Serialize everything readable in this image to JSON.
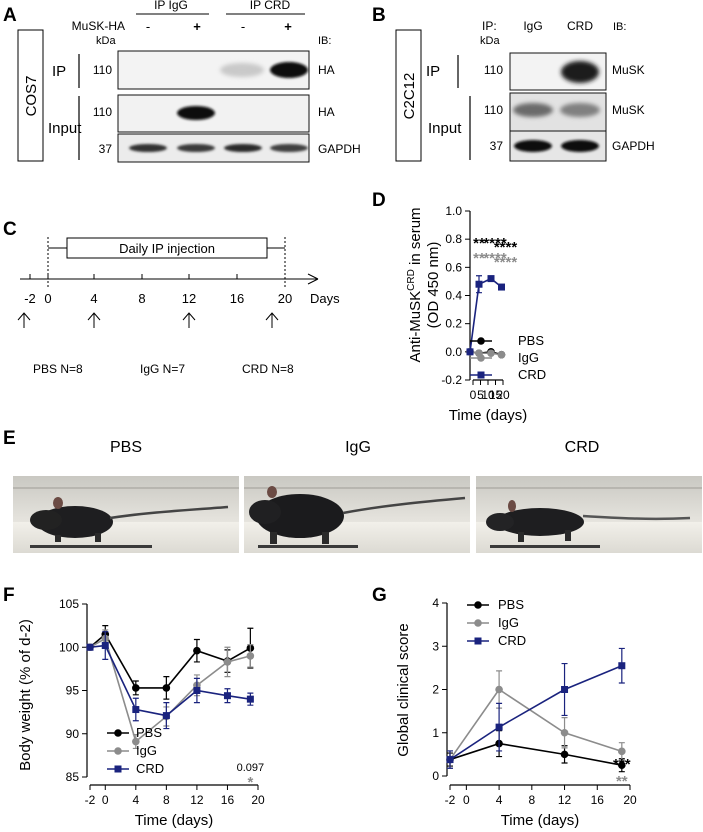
{
  "panel_letters": {
    "a": "A",
    "b": "B",
    "c": "C",
    "d": "D",
    "e": "E",
    "f": "F",
    "g": "G"
  },
  "colors": {
    "pbs": "#000000",
    "igg": "#8c8c8c",
    "crd": "#1a237e"
  },
  "panelA": {
    "cell_line": "COS7",
    "group_igg": "IP IgG",
    "group_crd": "IP CRD",
    "musk_label": "MuSK-HA",
    "signs": [
      "-",
      "+",
      "-",
      "+"
    ],
    "kda": "kDa",
    "ib": "IB:",
    "row_ip": "IP",
    "row_input": "Input",
    "markers": [
      "110",
      "110",
      "37"
    ],
    "blot_labels": [
      "HA",
      "HA",
      "GAPDH"
    ]
  },
  "panelB": {
    "cell_line": "C2C12",
    "ip_label": "IP:",
    "lane_igg": "IgG",
    "lane_crd": "CRD",
    "kda": "kDa",
    "ib": "IB:",
    "row_ip": "IP",
    "row_input": "Input",
    "markers": [
      "110",
      "110",
      "37"
    ],
    "blot_labels": [
      "MuSK",
      "MuSK",
      "GAPDH"
    ]
  },
  "panelC": {
    "injection_label": "Daily IP injection",
    "days_label": "Days",
    "ticks": [
      "-2",
      "0",
      "4",
      "8",
      "12",
      "16",
      "20"
    ],
    "groups": [
      "PBS N=8",
      "IgG N=7",
      "CRD N=8"
    ]
  },
  "panelE": {
    "labels": [
      "PBS",
      "IgG",
      "CRD"
    ]
  },
  "chart_data": [
    {
      "id": "D",
      "type": "line",
      "title": "",
      "ylabel_line1": "Anti-MuSK",
      "ylabel_sup": "CRD",
      "ylabel_rest": " in serum",
      "ylabel_line2": "(OD 450 nm)",
      "xlabel": "Time (days)",
      "xlim": [
        -2,
        20
      ],
      "ylim": [
        -0.2,
        1.0
      ],
      "xticks": [
        0,
        5,
        10,
        15,
        20
      ],
      "yticks": [
        -0.2,
        0.0,
        0.2,
        0.4,
        0.6,
        0.8,
        1.0
      ],
      "ytick_labels": [
        "-0.2",
        "0.0",
        "0.2",
        "0.4",
        "0.6",
        "0.8",
        "1.0"
      ],
      "legend_position": "bottom-right",
      "series": [
        {
          "name": "PBS",
          "key": "pbs",
          "marker": "circle",
          "x": [
            -2,
            4,
            12,
            19
          ],
          "y": [
            0.0,
            -0.01,
            0.0,
            -0.02
          ],
          "err": [
            0.01,
            0.01,
            0.01,
            0.01
          ]
        },
        {
          "name": "IgG",
          "key": "igg",
          "marker": "circle",
          "x": [
            -2,
            4,
            12,
            19
          ],
          "y": [
            0.0,
            -0.01,
            -0.01,
            -0.02
          ],
          "err": [
            0.01,
            0.01,
            0.01,
            0.01
          ]
        },
        {
          "name": "CRD",
          "key": "crd",
          "marker": "square",
          "x": [
            -2,
            4,
            12,
            19
          ],
          "y": [
            0.0,
            0.48,
            0.52,
            0.46
          ],
          "err": [
            0.01,
            0.06,
            0.01,
            0.01
          ]
        }
      ],
      "annotations": [
        {
          "x": 4,
          "top": "**",
          "bottom": "**"
        },
        {
          "x": 12,
          "top": "****",
          "bottom": "****"
        },
        {
          "x": 19,
          "top": "****",
          "bottom": "****"
        }
      ]
    },
    {
      "id": "F",
      "type": "line",
      "title": "",
      "ylabel": "Body weight (% of d-2)",
      "xlabel": "Time (days)",
      "xlim": [
        -2,
        20
      ],
      "ylim": [
        85,
        105
      ],
      "xticks": [
        -2,
        0,
        4,
        8,
        12,
        16,
        20
      ],
      "yticks": [
        85,
        90,
        95,
        100,
        105
      ],
      "legend_position": "bottom-left",
      "series": [
        {
          "name": "PBS",
          "key": "pbs",
          "marker": "circle",
          "x": [
            -2,
            0,
            4,
            8,
            12,
            16,
            19
          ],
          "y": [
            100,
            101.5,
            95.3,
            95.3,
            99.6,
            98.4,
            99.9
          ],
          "err": [
            0.2,
            1.0,
            0.8,
            1.3,
            1.3,
            1.3,
            2.3
          ]
        },
        {
          "name": "IgG",
          "key": "igg",
          "marker": "circle",
          "x": [
            -2,
            0,
            4,
            8,
            12,
            16,
            19
          ],
          "y": [
            100,
            101.0,
            89.1,
            92.0,
            95.6,
            98.3,
            99.0
          ],
          "err": [
            0.2,
            1.0,
            0.8,
            1.1,
            1.2,
            1.7,
            1.3
          ]
        },
        {
          "name": "CRD",
          "key": "crd",
          "marker": "square",
          "x": [
            -2,
            0,
            4,
            8,
            12,
            16,
            19
          ],
          "y": [
            100,
            100.2,
            92.8,
            92.1,
            95.0,
            94.4,
            94.0
          ],
          "err": [
            0.2,
            1.6,
            1.3,
            1.5,
            1.4,
            0.8,
            0.7
          ]
        }
      ],
      "annotations": [
        {
          "x": 19,
          "top": "0.097",
          "bottom": "*"
        }
      ]
    },
    {
      "id": "G",
      "type": "line",
      "title": "",
      "ylabel": "Global clinical score",
      "xlabel": "Time (days)",
      "xlim": [
        -2,
        20
      ],
      "ylim": [
        0,
        4
      ],
      "xticks": [
        -2,
        0,
        4,
        8,
        12,
        16,
        20
      ],
      "yticks": [
        0,
        1,
        2,
        3,
        4
      ],
      "legend_position": "top-left",
      "series": [
        {
          "name": "PBS",
          "key": "pbs",
          "marker": "circle",
          "x": [
            -2,
            4,
            12,
            19
          ],
          "y": [
            0.38,
            0.75,
            0.5,
            0.25
          ],
          "err": [
            0.15,
            0.3,
            0.2,
            0.15
          ]
        },
        {
          "name": "IgG",
          "key": "igg",
          "marker": "circle",
          "x": [
            -2,
            4,
            12,
            19
          ],
          "y": [
            0.38,
            2.0,
            1.0,
            0.57
          ],
          "err": [
            0.2,
            0.43,
            0.35,
            0.2
          ]
        },
        {
          "name": "CRD",
          "key": "crd",
          "marker": "square",
          "x": [
            -2,
            4,
            12,
            19
          ],
          "y": [
            0.38,
            1.13,
            2.0,
            2.55
          ],
          "err": [
            0.2,
            0.55,
            0.6,
            0.4
          ]
        }
      ],
      "annotations": [
        {
          "x": 19,
          "top": "***",
          "bottom": "**"
        }
      ]
    }
  ]
}
